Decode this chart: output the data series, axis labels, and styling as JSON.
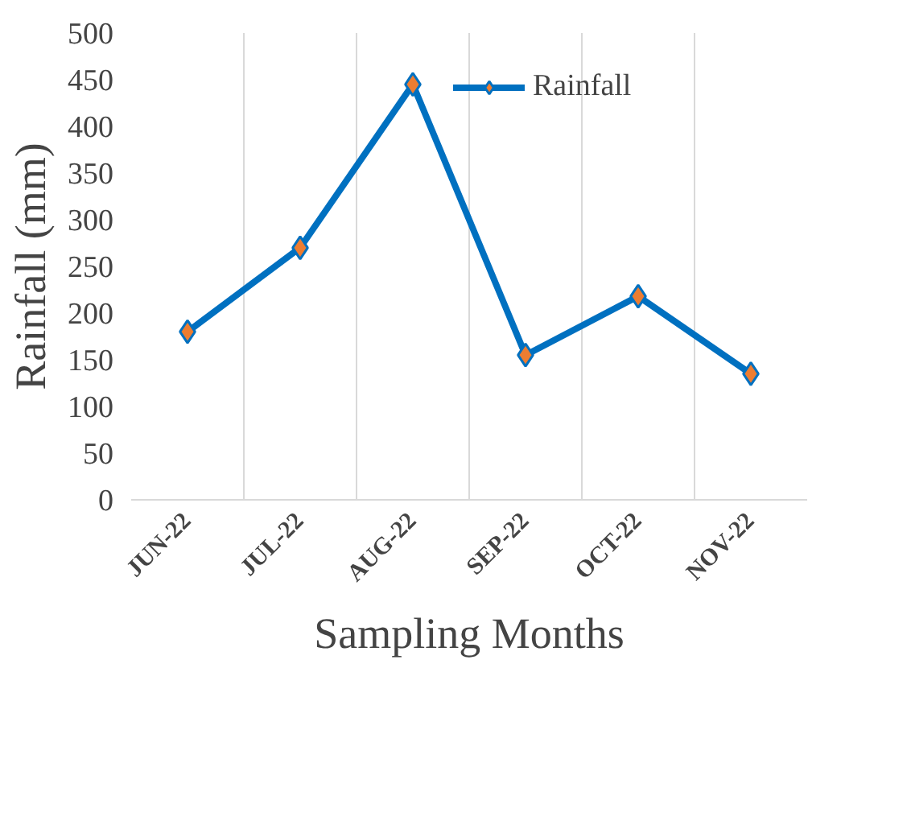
{
  "chart_data": {
    "type": "line",
    "xlabel": "Sampling Months",
    "ylabel": "Rainfall (mm)",
    "categories": [
      "JUN-22",
      "JUL-22",
      "AUG-22",
      "SEP-22",
      "OCT-22",
      "NOV-22"
    ],
    "series": [
      {
        "name": "Rainfall",
        "color": "#0070c0",
        "values": [
          180,
          270,
          445,
          155,
          218,
          135
        ]
      }
    ],
    "ylim": [
      0,
      500
    ],
    "yticks": [
      0,
      50,
      100,
      150,
      200,
      250,
      300,
      350,
      400,
      450,
      500
    ],
    "grid": "x",
    "legend": "top",
    "marker": "diamond",
    "line_style": "solid"
  }
}
